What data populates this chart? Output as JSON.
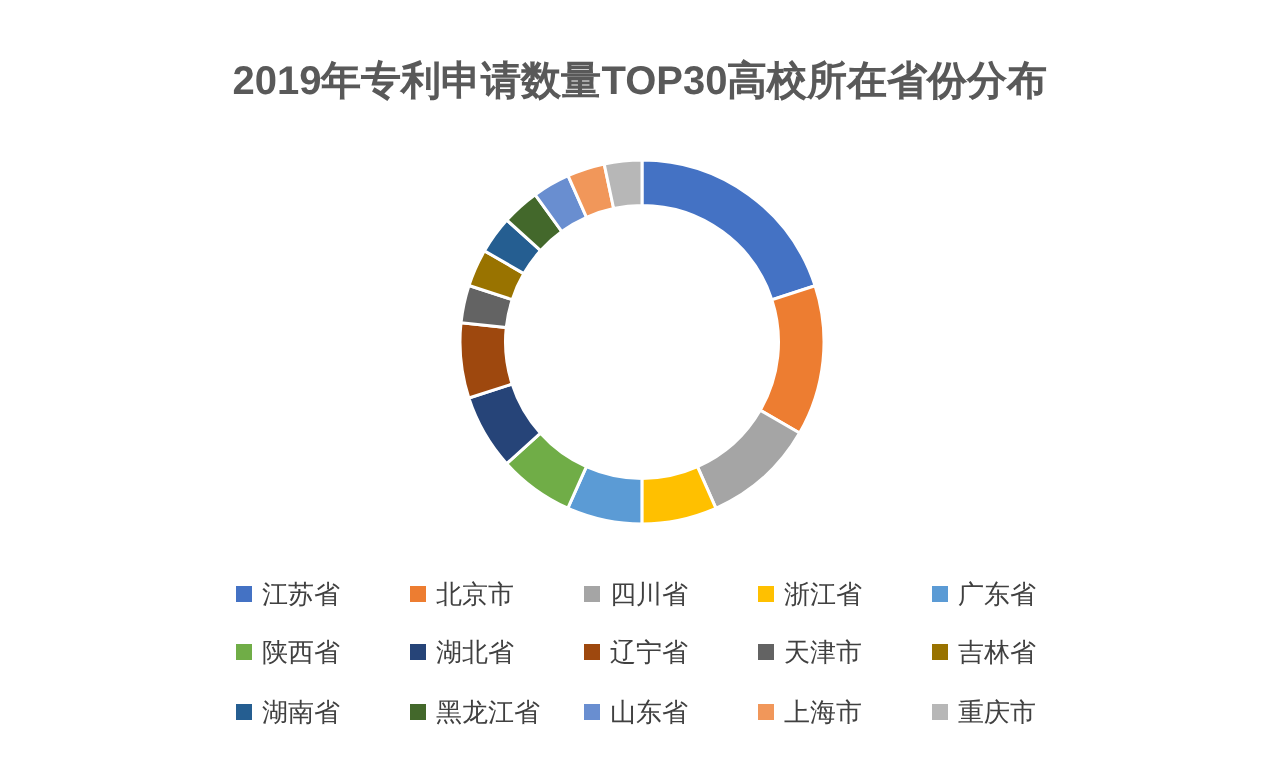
{
  "chart_data": {
    "type": "donut",
    "title": "2019年专利申请数量TOP30高校所在省份分布",
    "categories": [
      "江苏省",
      "北京市",
      "四川省",
      "浙江省",
      "广东省",
      "陕西省",
      "湖北省",
      "辽宁省",
      "天津市",
      "吉林省",
      "湖南省",
      "黑龙江省",
      "山东省",
      "上海市",
      "重庆市"
    ],
    "values": [
      20,
      13.34,
      10,
      6.67,
      6.67,
      6.67,
      6.67,
      6.67,
      3.33,
      3.33,
      3.33,
      3.33,
      3.33,
      3.33,
      3.33
    ],
    "colors": [
      "#4472c4",
      "#ed7d31",
      "#a5a5a5",
      "#ffc000",
      "#5b9bd5",
      "#70ad47",
      "#264478",
      "#9e480e",
      "#636363",
      "#997300",
      "#255e91",
      "#43682b",
      "#698ed0",
      "#f1975a",
      "#b7b7b7"
    ],
    "legend": "bottom"
  }
}
